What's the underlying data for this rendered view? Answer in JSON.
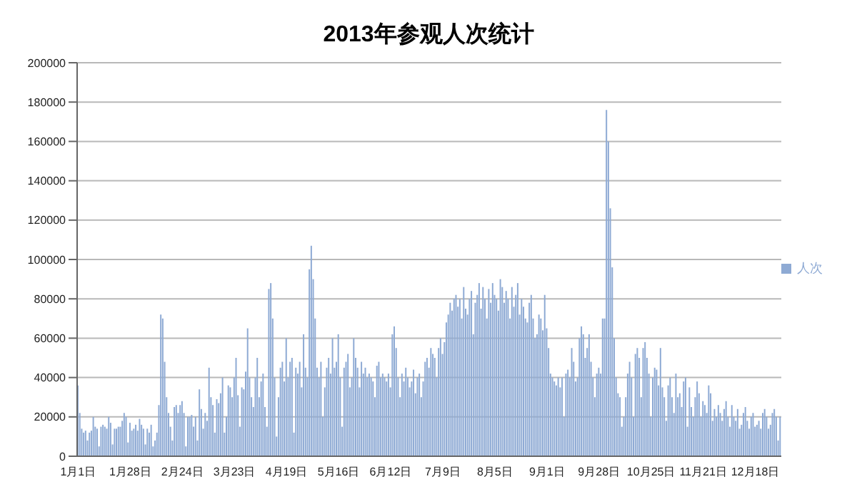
{
  "chart_data": {
    "type": "bar",
    "title": "2013年参观人次统计",
    "categories": [
      "1月1日",
      null,
      null,
      null,
      null,
      null,
      null,
      null,
      null,
      null,
      null,
      null,
      null,
      null,
      null,
      null,
      null,
      null,
      null,
      null,
      null,
      null,
      null,
      null,
      null,
      null,
      null,
      "1月28日",
      null,
      null,
      null,
      null,
      null,
      null,
      null,
      null,
      null,
      null,
      null,
      null,
      null,
      null,
      null,
      null,
      null,
      null,
      null,
      null,
      null,
      null,
      null,
      null,
      null,
      null,
      "2月24日",
      null,
      null,
      null,
      null,
      null,
      null,
      null,
      null,
      null,
      null,
      null,
      null,
      null,
      null,
      null,
      null,
      null,
      null,
      null,
      null,
      null,
      null,
      null,
      null,
      null,
      null,
      "3月23日",
      null,
      null,
      null,
      null,
      null,
      null,
      null,
      null,
      null,
      null,
      null,
      null,
      null,
      null,
      null,
      null,
      null,
      null,
      null,
      null,
      null,
      null,
      null,
      null,
      null,
      null,
      "4月19日",
      null,
      null,
      null,
      null,
      null,
      null,
      null,
      null,
      null,
      null,
      null,
      null,
      null,
      null,
      null,
      null,
      null,
      null,
      null,
      null,
      null,
      null,
      null,
      null,
      null,
      null,
      "5月16日",
      null,
      null,
      null,
      null,
      null,
      null,
      null,
      null,
      null,
      null,
      null,
      null,
      null,
      null,
      null,
      null,
      null,
      null,
      null,
      null,
      null,
      null,
      null,
      null,
      null,
      null,
      "6月12日",
      null,
      null,
      null,
      null,
      null,
      null,
      null,
      null,
      null,
      null,
      null,
      null,
      null,
      null,
      null,
      null,
      null,
      null,
      null,
      null,
      null,
      null,
      null,
      null,
      null,
      null,
      "7月9日",
      null,
      null,
      null,
      null,
      null,
      null,
      null,
      null,
      null,
      null,
      null,
      null,
      null,
      null,
      null,
      null,
      null,
      null,
      null,
      null,
      null,
      null,
      null,
      null,
      null,
      null,
      "8月5日",
      null,
      null,
      null,
      null,
      null,
      null,
      null,
      null,
      null,
      null,
      null,
      null,
      null,
      null,
      null,
      null,
      null,
      null,
      null,
      null,
      null,
      null,
      null,
      null,
      null,
      null,
      "9月1日",
      null,
      null,
      null,
      null,
      null,
      null,
      null,
      null,
      null,
      null,
      null,
      null,
      null,
      null,
      null,
      null,
      null,
      null,
      null,
      null,
      null,
      null,
      null,
      null,
      null,
      null,
      "9月28日",
      null,
      null,
      null,
      null,
      null,
      null,
      null,
      null,
      null,
      null,
      null,
      null,
      null,
      null,
      null,
      null,
      null,
      null,
      null,
      null,
      null,
      null,
      null,
      null,
      null,
      null,
      "10月25日",
      null,
      null,
      null,
      null,
      null,
      null,
      null,
      null,
      null,
      null,
      null,
      null,
      null,
      null,
      null,
      null,
      null,
      null,
      null,
      null,
      null,
      null,
      null,
      null,
      null,
      null,
      "11月21日",
      null,
      null,
      null,
      null,
      null,
      null,
      null,
      null,
      null,
      null,
      null,
      null,
      null,
      null,
      null,
      null,
      null,
      null,
      null,
      null,
      null,
      null,
      null,
      null,
      null,
      null,
      "12月18日",
      null,
      null,
      null,
      null,
      null,
      null,
      null,
      null,
      null,
      null,
      null,
      null,
      null
    ],
    "series": [
      {
        "name": "人次",
        "color": "#8eaad4",
        "values": [
          36000,
          22000,
          14000,
          12000,
          13000,
          8000,
          12000,
          13000,
          20000,
          15000,
          14000,
          5000,
          15000,
          16000,
          15000,
          14000,
          20000,
          17000,
          6000,
          14000,
          14000,
          15000,
          15000,
          18000,
          22000,
          20000,
          7000,
          17000,
          13000,
          14000,
          16000,
          13000,
          19000,
          16000,
          14000,
          6000,
          14000,
          12000,
          16000,
          5000,
          8000,
          12000,
          26000,
          72000,
          70000,
          48000,
          30000,
          22000,
          15000,
          8000,
          25000,
          26000,
          22000,
          26000,
          28000,
          22000,
          5000,
          20000,
          20000,
          21000,
          15000,
          20000,
          8000,
          34000,
          24000,
          14000,
          22000,
          18000,
          45000,
          30000,
          26000,
          12000,
          29000,
          27000,
          32000,
          40000,
          12000,
          20000,
          36000,
          35000,
          30000,
          40000,
          50000,
          31000,
          15000,
          35000,
          34000,
          43000,
          65000,
          40000,
          30000,
          25000,
          40000,
          50000,
          30000,
          38000,
          42000,
          25000,
          15000,
          85000,
          88000,
          70000,
          40000,
          10000,
          30000,
          45000,
          48000,
          38000,
          60000,
          40000,
          48000,
          50000,
          12000,
          45000,
          42000,
          48000,
          35000,
          62000,
          45000,
          40000,
          95000,
          107000,
          90000,
          70000,
          45000,
          40000,
          48000,
          20000,
          35000,
          45000,
          50000,
          42000,
          60000,
          45000,
          48000,
          62000,
          40000,
          15000,
          45000,
          48000,
          52000,
          35000,
          40000,
          60000,
          50000,
          45000,
          35000,
          48000,
          42000,
          45000,
          40000,
          42000,
          40000,
          38000,
          30000,
          46000,
          48000,
          40000,
          42000,
          40000,
          38000,
          42000,
          35000,
          62000,
          66000,
          55000,
          40000,
          30000,
          42000,
          38000,
          45000,
          40000,
          35000,
          38000,
          44000,
          32000,
          40000,
          42000,
          30000,
          38000,
          48000,
          50000,
          45000,
          55000,
          52000,
          50000,
          40000,
          55000,
          60000,
          52000,
          58000,
          68000,
          72000,
          78000,
          74000,
          80000,
          82000,
          76000,
          80000,
          70000,
          86000,
          75000,
          72000,
          80000,
          84000,
          62000,
          78000,
          82000,
          88000,
          75000,
          86000,
          80000,
          70000,
          85000,
          78000,
          88000,
          82000,
          80000,
          74000,
          90000,
          86000,
          78000,
          84000,
          80000,
          70000,
          86000,
          76000,
          82000,
          88000,
          72000,
          80000,
          76000,
          70000,
          68000,
          78000,
          82000,
          70000,
          60000,
          62000,
          72000,
          70000,
          64000,
          82000,
          65000,
          55000,
          42000,
          40000,
          38000,
          36000,
          40000,
          35000,
          40000,
          20000,
          42000,
          44000,
          40000,
          55000,
          48000,
          38000,
          40000,
          60000,
          66000,
          62000,
          50000,
          55000,
          62000,
          48000,
          40000,
          30000,
          42000,
          45000,
          42000,
          70000,
          70000,
          176000,
          160000,
          126000,
          96000,
          60000,
          40000,
          32000,
          30000,
          15000,
          20000,
          30000,
          42000,
          48000,
          40000,
          20000,
          52000,
          55000,
          50000,
          30000,
          55000,
          58000,
          50000,
          42000,
          20000,
          40000,
          45000,
          44000,
          36000,
          55000,
          35000,
          30000,
          18000,
          36000,
          40000,
          30000,
          22000,
          42000,
          30000,
          32000,
          25000,
          38000,
          40000,
          15000,
          35000,
          25000,
          20000,
          30000,
          38000,
          32000,
          20000,
          28000,
          26000,
          22000,
          36000,
          32000,
          18000,
          24000,
          20000,
          26000,
          22000,
          18000,
          24000,
          28000,
          20000,
          15000,
          26000,
          20000,
          18000,
          24000,
          14000,
          16000,
          22000,
          25000,
          18000,
          14000,
          20000,
          22000,
          15000,
          16000,
          18000,
          14000,
          22000,
          24000,
          20000,
          14000,
          16000,
          22000,
          24000,
          20000,
          8000,
          20000
        ]
      }
    ],
    "ylim": [
      0,
      200000
    ],
    "yticks": [
      0,
      20000,
      40000,
      60000,
      80000,
      100000,
      120000,
      140000,
      160000,
      180000,
      200000
    ],
    "grid": "y",
    "legend": "right"
  }
}
